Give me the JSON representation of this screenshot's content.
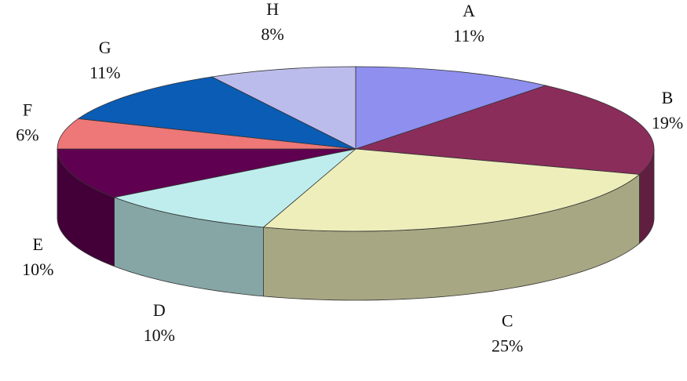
{
  "chart_data": {
    "type": "pie3d",
    "categories": [
      "A",
      "B",
      "C",
      "D",
      "E",
      "F",
      "G",
      "H"
    ],
    "values": [
      11,
      19,
      25,
      10,
      10,
      6,
      11,
      8
    ],
    "value_labels": [
      "11%",
      "19%",
      "25%",
      "10%",
      "10%",
      "6%",
      "11%",
      "8%"
    ],
    "colors": [
      "#8f8fef",
      "#8b2d5b",
      "#eeeebb",
      "#bfeded",
      "#5f0050",
      "#ee7777",
      "#0a5cb5",
      "#bcbcec"
    ]
  }
}
